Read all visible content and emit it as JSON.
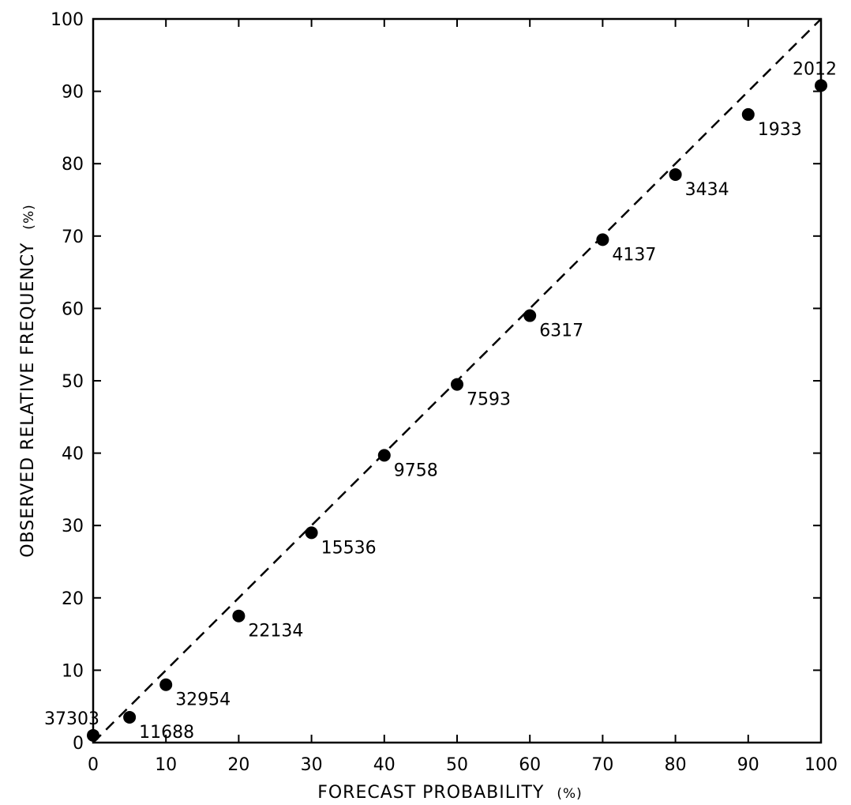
{
  "chart_data": {
    "type": "scatter",
    "title": "",
    "xlabel": "FORECAST  PROBABILITY",
    "xlabel_unit": "(%)",
    "ylabel": "OBSERVED  RELATIVE  FREQUENCY",
    "ylabel_unit": "(%)",
    "xlim": [
      0,
      100
    ],
    "ylim": [
      0,
      100
    ],
    "x_ticks": [
      0,
      10,
      20,
      30,
      40,
      50,
      60,
      70,
      80,
      90,
      100
    ],
    "y_ticks": [
      0,
      10,
      20,
      30,
      40,
      50,
      60,
      70,
      80,
      90,
      100
    ],
    "grid": false,
    "reference_line": {
      "style": "dashed",
      "from": [
        0,
        0
      ],
      "to": [
        100,
        100
      ]
    },
    "points": [
      {
        "x": 0,
        "y": 1,
        "label": "37303"
      },
      {
        "x": 5,
        "y": 3.5,
        "label": "11688"
      },
      {
        "x": 10,
        "y": 8,
        "label": "32954"
      },
      {
        "x": 20,
        "y": 17.5,
        "label": "22134"
      },
      {
        "x": 30,
        "y": 29,
        "label": "15536"
      },
      {
        "x": 40,
        "y": 39.7,
        "label": "9758"
      },
      {
        "x": 50,
        "y": 49.5,
        "label": "7593"
      },
      {
        "x": 60,
        "y": 59,
        "label": "6317"
      },
      {
        "x": 70,
        "y": 69.5,
        "label": "4137"
      },
      {
        "x": 80,
        "y": 78.5,
        "label": "3434"
      },
      {
        "x": 90,
        "y": 86.8,
        "label": "1933"
      },
      {
        "x": 100,
        "y": 90.8,
        "label": "2012"
      }
    ],
    "colors": {
      "ink": "#000000",
      "background": "#ffffff"
    }
  }
}
